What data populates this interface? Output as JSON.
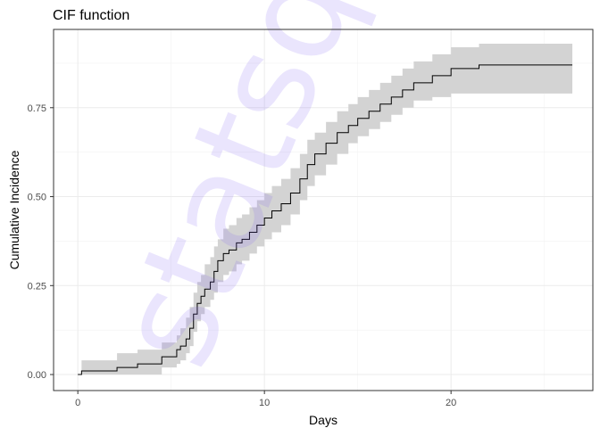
{
  "chart_data": {
    "type": "line",
    "title": "CIF function",
    "xlabel": "Days",
    "ylabel": "Cumulative Incidence",
    "xlim": [
      -1.3,
      27.6
    ],
    "ylim": [
      -0.045,
      0.97
    ],
    "x_ticks": [
      0,
      10,
      20
    ],
    "x_tick_labels": [
      "0",
      "10",
      "20"
    ],
    "y_ticks": [
      0.0,
      0.25,
      0.5,
      0.75
    ],
    "y_tick_labels": [
      "0.00",
      "0.25",
      "0.50",
      "0.75"
    ],
    "grid": true,
    "legend": "none",
    "step": true,
    "series": [
      {
        "line_color": "#000000",
        "band_color": "#d3d3d3",
        "x": [
          0,
          0.2,
          2.1,
          3.2,
          4.5,
          5.3,
          5.5,
          5.8,
          6.0,
          6.2,
          6.4,
          6.6,
          6.8,
          7.1,
          7.3,
          7.5,
          7.8,
          8.1,
          8.5,
          8.8,
          9.2,
          9.6,
          10.0,
          10.4,
          10.9,
          11.4,
          11.9,
          12.3,
          12.7,
          13.3,
          13.9,
          14.5,
          15.0,
          15.6,
          16.2,
          16.8,
          17.4,
          18.0,
          19.0,
          20.0,
          21.5,
          26.5
        ],
        "y": [
          0,
          0.01,
          0.02,
          0.03,
          0.05,
          0.07,
          0.08,
          0.1,
          0.13,
          0.17,
          0.2,
          0.22,
          0.24,
          0.26,
          0.29,
          0.32,
          0.34,
          0.35,
          0.37,
          0.38,
          0.4,
          0.42,
          0.44,
          0.46,
          0.48,
          0.51,
          0.55,
          0.59,
          0.62,
          0.65,
          0.68,
          0.7,
          0.72,
          0.74,
          0.76,
          0.78,
          0.8,
          0.82,
          0.84,
          0.86,
          0.87,
          0.87
        ],
        "lower": [
          0,
          0.0,
          0.0,
          0.0,
          0.02,
          0.03,
          0.04,
          0.06,
          0.08,
          0.12,
          0.15,
          0.17,
          0.19,
          0.21,
          0.23,
          0.26,
          0.28,
          0.29,
          0.31,
          0.32,
          0.34,
          0.36,
          0.38,
          0.4,
          0.42,
          0.45,
          0.49,
          0.53,
          0.56,
          0.59,
          0.62,
          0.65,
          0.67,
          0.69,
          0.71,
          0.73,
          0.75,
          0.77,
          0.78,
          0.79,
          0.79,
          0.79
        ],
        "upper": [
          0,
          0.04,
          0.06,
          0.07,
          0.09,
          0.11,
          0.13,
          0.16,
          0.19,
          0.23,
          0.26,
          0.28,
          0.31,
          0.33,
          0.36,
          0.38,
          0.41,
          0.42,
          0.44,
          0.45,
          0.47,
          0.49,
          0.51,
          0.53,
          0.55,
          0.58,
          0.62,
          0.66,
          0.68,
          0.71,
          0.74,
          0.76,
          0.78,
          0.8,
          0.82,
          0.84,
          0.86,
          0.88,
          0.9,
          0.92,
          0.93,
          0.93
        ]
      }
    ]
  },
  "watermark": {
    "text": "statsq",
    "color": "#7b5cf0"
  }
}
